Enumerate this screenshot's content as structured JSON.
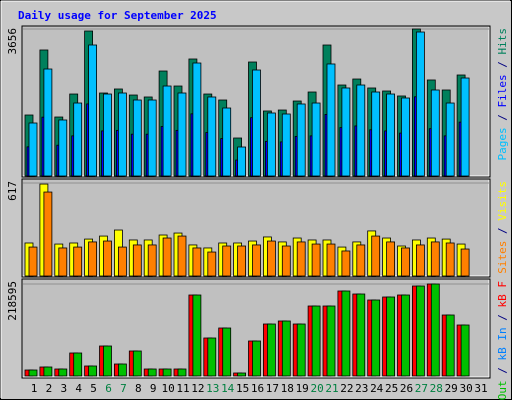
{
  "chart_data": [
    {
      "type": "bar",
      "title": "Daily usage for September 2025",
      "ylim": [
        0,
        3656
      ],
      "yticks": [
        3656
      ],
      "legend_separator": " / ",
      "series": [
        {
          "name": "Hits",
          "color": "#00805c",
          "values": [
            1517,
            3134,
            1467,
            2039,
            3606,
            2064,
            2164,
            2014,
            1965,
            2611,
            2238,
            2910,
            2039,
            1890,
            945,
            2835,
            1617,
            1641,
            1865,
            2089,
            3258,
            2263,
            2412,
            2189,
            2114,
            1990,
            3656,
            2388,
            2139,
            2512,
            null
          ]
        },
        {
          "name": "Files",
          "color": "#0000ff",
          "values": [
            725,
            1464,
            766,
            998,
            1792,
            1121,
            1135,
            1040,
            1040,
            1231,
            1135,
            1546,
            1081,
            930,
            397,
            1450,
            862,
            848,
            985,
            998,
            1532,
            1204,
            1245,
            1149,
            1121,
            1067,
            1970,
            1176,
            998,
            1340,
            null
          ]
        },
        {
          "name": "Pages",
          "color": "#00c0ff",
          "values": [
            1318,
            2661,
            1393,
            1815,
            3258,
            2039,
            2064,
            1890,
            1890,
            2238,
            2064,
            2810,
            1965,
            1691,
            721,
            2636,
            1567,
            1542,
            1791,
            1815,
            2786,
            2189,
            2263,
            2089,
            2039,
            1940,
            3581,
            2139,
            1815,
            2437,
            null
          ]
        }
      ]
    },
    {
      "type": "bar",
      "ylim": [
        0,
        617
      ],
      "yticks": [
        617
      ],
      "legend_separator": " / ",
      "series": [
        {
          "name": "Visits",
          "color": "#ffff00",
          "values": [
            219,
            610,
            212,
            219,
            245,
            265,
            305,
            239,
            239,
            272,
            285,
            206,
            186,
            219,
            219,
            232,
            259,
            226,
            252,
            239,
            239,
            192,
            226,
            299,
            252,
            199,
            239,
            252,
            245,
            212,
            null
          ]
        },
        {
          "name": "Sites",
          "color": "#ff8000",
          "values": [
            192,
            557,
            186,
            192,
            226,
            232,
            192,
            206,
            206,
            252,
            265,
            186,
            159,
            199,
            199,
            206,
            232,
            199,
            226,
            212,
            212,
            166,
            206,
            265,
            226,
            186,
            206,
            226,
            219,
            179,
            null
          ]
        }
      ]
    },
    {
      "type": "bar",
      "ylim": [
        0,
        218595
      ],
      "yticks": [
        218595
      ],
      "legend_separator": " / ",
      "categories": [
        "1",
        "2",
        "3",
        "4",
        "5",
        "6",
        "7",
        "8",
        "9",
        "10",
        "11",
        "12",
        "13",
        "14",
        "15",
        "16",
        "17",
        "18",
        "19",
        "20",
        "21",
        "22",
        "23",
        "24",
        "25",
        "26",
        "27",
        "28",
        "29",
        "30",
        "31"
      ],
      "category_colors": [
        "#000000",
        "#000000",
        "#000000",
        "#000000",
        "#000000",
        "#008040",
        "#008040",
        "#000000",
        "#000000",
        "#000000",
        "#000000",
        "#000000",
        "#008040",
        "#008040",
        "#000000",
        "#000000",
        "#000000",
        "#000000",
        "#000000",
        "#008040",
        "#008040",
        "#000000",
        "#000000",
        "#000000",
        "#000000",
        "#000000",
        "#008040",
        "#008040",
        "#000000",
        "#000000",
        "#000000"
      ],
      "series": [
        {
          "name": "kB F",
          "color": "#ff0000",
          "values": [
            14257,
            21384,
            16632,
            54650,
            23760,
            71280,
            28512,
            59400,
            16632,
            16632,
            16632,
            192456,
            90288,
            114048,
            7128,
            83160,
            123552,
            130680,
            123552,
            166320,
            166320,
            201960,
            194832,
            180576,
            187704,
            192456,
            213840,
            218595,
            144936,
            121176,
            null
          ]
        },
        {
          "name": "kB In",
          "color": "#0080ff",
          "values": [
            0,
            0,
            0,
            0,
            0,
            0,
            0,
            0,
            0,
            0,
            0,
            0,
            0,
            0,
            0,
            0,
            0,
            0,
            0,
            0,
            0,
            0,
            0,
            0,
            0,
            0,
            0,
            0,
            0,
            0,
            null
          ]
        },
        {
          "name": "kB Out",
          "color": "#00c000",
          "values": [
            14257,
            21384,
            16632,
            54650,
            23760,
            71280,
            28512,
            59400,
            16632,
            16632,
            16632,
            192456,
            90288,
            114048,
            7128,
            83160,
            123552,
            130680,
            123552,
            166320,
            166320,
            201960,
            194832,
            180576,
            187704,
            192456,
            213840,
            218595,
            144936,
            121176,
            null
          ]
        }
      ]
    }
  ]
}
